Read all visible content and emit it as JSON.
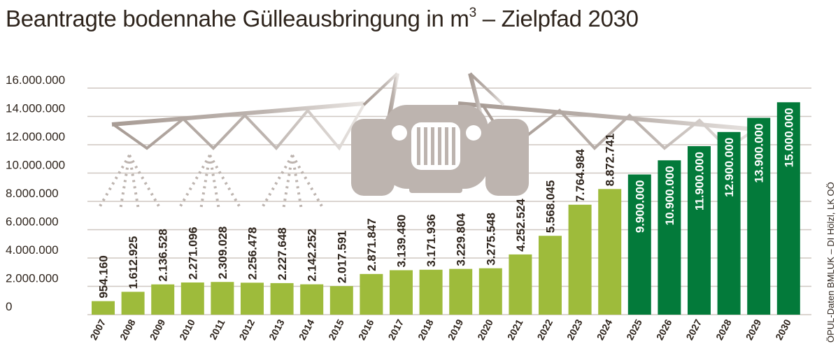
{
  "title": {
    "prefix": "Beantragte bodennahe Gülleausbringung in m",
    "superscript": "3",
    "suffix": " – Zielpfad 2030"
  },
  "source_note": "ÖPUL-Daten BMLUK – DI Hölzl, LK OÖ",
  "colors": {
    "actual_bar": "#9ebb3b",
    "target_bar": "#037a3a",
    "grid": "#cfc7c1",
    "text": "#2e241c",
    "illustration": "#b5aca6"
  },
  "chart_data": {
    "type": "bar",
    "title": "Beantragte bodennahe Gülleausbringung in m³ – Zielpfad 2030",
    "categories": [
      "2007",
      "2008",
      "2009",
      "2010",
      "2011",
      "2012",
      "2013",
      "2014",
      "2015",
      "2016",
      "2017",
      "2018",
      "2019",
      "2020",
      "2021",
      "2022",
      "2023",
      "2024",
      "2025",
      "2026",
      "2027",
      "2028",
      "2029",
      "2030"
    ],
    "values": [
      954160,
      1612925,
      2136528,
      2271096,
      2309028,
      2256478,
      2227648,
      2142252,
      2017591,
      2871847,
      3139480,
      3171936,
      3229804,
      3275548,
      4252524,
      5568045,
      7764984,
      8872741,
      9900000,
      10900000,
      11900000,
      12900000,
      13900000,
      15000000
    ],
    "value_labels": [
      "954.160",
      "1.612.925",
      "2.136.528",
      "2.271.096",
      "2.309.028",
      "2.256.478",
      "2.227.648",
      "2.142.252",
      "2.017.591",
      "2.871.847",
      "3.139.480",
      "3.171.936",
      "3.229.804",
      "3.275.548",
      "4.252.524",
      "5.568.045",
      "7.764.984",
      "8.872.741",
      "9.900.000",
      "10.900.000",
      "11.900.000",
      "12.900.000",
      "13.900.000",
      "15.000.000"
    ],
    "series_kind": [
      "actual",
      "actual",
      "actual",
      "actual",
      "actual",
      "actual",
      "actual",
      "actual",
      "actual",
      "actual",
      "actual",
      "actual",
      "actual",
      "actual",
      "actual",
      "actual",
      "actual",
      "actual",
      "target",
      "target",
      "target",
      "target",
      "target",
      "target"
    ],
    "y_ticks": [
      0,
      2000000,
      4000000,
      6000000,
      8000000,
      10000000,
      12000000,
      14000000,
      16000000
    ],
    "y_tick_labels": [
      "0",
      "2.000.000",
      "4.000.000",
      "6.000.000",
      "8.000.000",
      "10.000.000",
      "12.000.000",
      "14.000.000",
      "16.000.000"
    ],
    "ylim": [
      0,
      16000000
    ],
    "xlabel": "",
    "ylabel": "",
    "grid": true,
    "legend": "none"
  }
}
